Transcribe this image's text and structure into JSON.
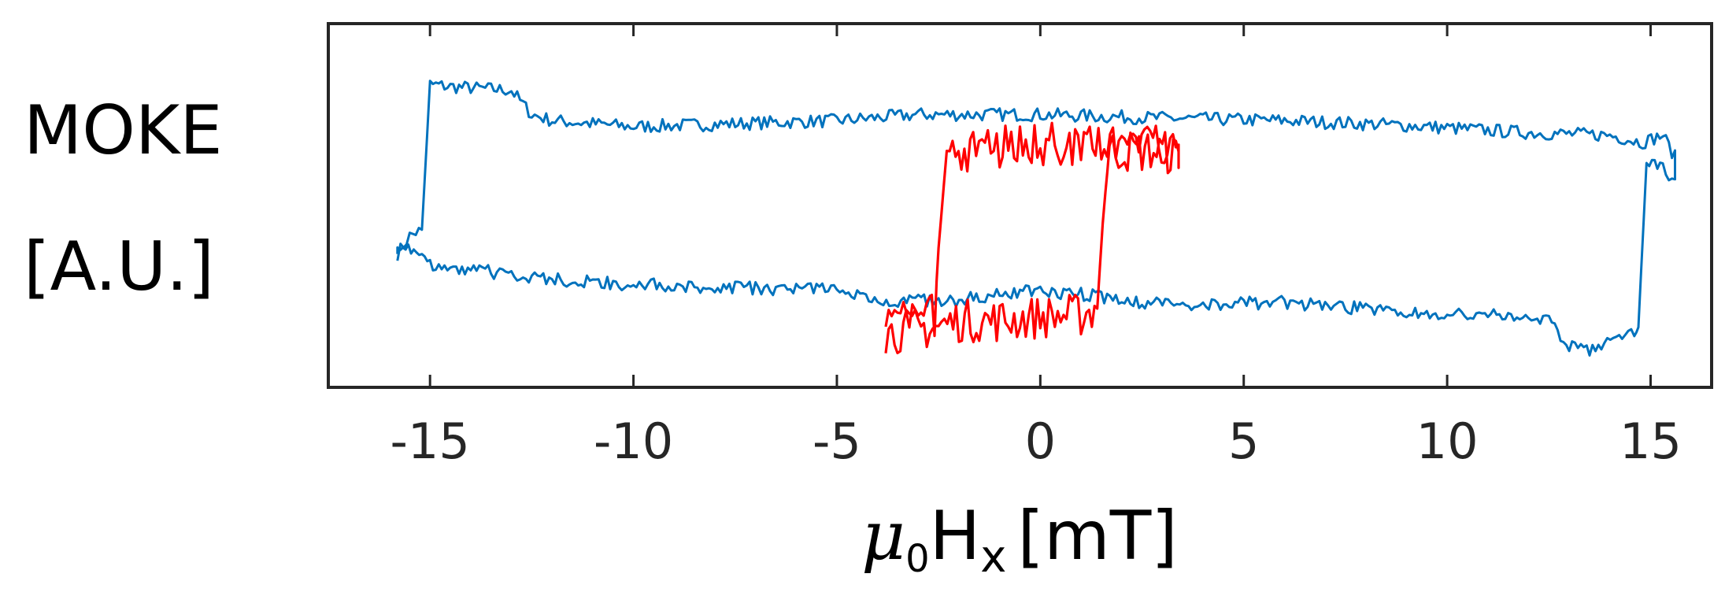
{
  "chart_data": {
    "type": "line",
    "title": "",
    "ylabel_lines": [
      "MOKE",
      "[A.U.]"
    ],
    "xlabel": {
      "symbol": "μ",
      "symbol_subscript": "0",
      "field": "H",
      "field_subscript": "x",
      "unit": "[mT]"
    },
    "xlim": [
      -17.5,
      16.5
    ],
    "ylim": [
      -1.4,
      1.6
    ],
    "xticks": [
      -15,
      -10,
      -5,
      0,
      5,
      10,
      15
    ],
    "xtick_labels": [
      "-15",
      "-10",
      "-5",
      "0",
      "5",
      "10",
      "15"
    ],
    "yticks_shown": false,
    "grid": false,
    "series": [
      {
        "color": "#0072BD",
        "x": [
          -15.8,
          -15.5,
          -15.2,
          -15.0,
          -14.5,
          -13.0,
          -12.5,
          -12.0,
          -10.0,
          -7.0,
          -5.0,
          -3.0,
          0.0,
          3.0,
          6.0,
          9.0,
          12.0,
          14.0,
          14.8,
          15.3,
          15.6,
          15.6,
          15.3,
          14.9,
          14.7,
          14.6,
          14.3,
          13.5,
          13.0,
          12.5,
          11.0,
          9.0,
          6.0,
          3.0,
          1.5,
          0.0,
          -2.0,
          -4.0,
          -5.0,
          -7.0,
          -10.0,
          -12.5,
          -14.0,
          -15.0,
          -15.4,
          -15.8,
          -15.8
        ],
        "y": [
          -0.3,
          -0.15,
          -0.1,
          1.1,
          1.08,
          1.05,
          0.85,
          0.8,
          0.75,
          0.78,
          0.8,
          0.85,
          0.85,
          0.82,
          0.8,
          0.76,
          0.7,
          0.68,
          0.62,
          0.68,
          0.5,
          0.3,
          0.42,
          0.45,
          -0.9,
          -0.95,
          -1.0,
          -1.1,
          -1.05,
          -0.85,
          -0.8,
          -0.78,
          -0.7,
          -0.72,
          -0.65,
          -0.6,
          -0.68,
          -0.68,
          -0.6,
          -0.58,
          -0.55,
          -0.5,
          -0.42,
          -0.38,
          -0.3,
          -0.2,
          -0.3
        ],
        "noise": 0.055
      },
      {
        "color": "#FF0000",
        "x": [
          -3.8,
          -2.5,
          -2.0,
          -1.0,
          0.0,
          1.0,
          1.4,
          1.6,
          1.7,
          2.0,
          3.0,
          3.4,
          3.4,
          2.0,
          1.0,
          -1.0,
          -2.3,
          -2.5,
          -2.6,
          -3.0,
          -3.8
        ],
        "y": [
          -0.95,
          -0.9,
          -0.85,
          -0.85,
          -0.82,
          -0.8,
          -0.75,
          0.3,
          0.55,
          0.55,
          0.55,
          0.5,
          0.6,
          0.6,
          0.62,
          0.58,
          0.55,
          -0.25,
          -0.8,
          -0.82,
          -0.9
        ],
        "noise": 0.18
      }
    ]
  }
}
